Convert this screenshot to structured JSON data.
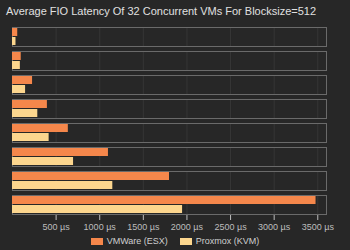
{
  "chart_data": {
    "type": "bar",
    "orientation": "horizontal",
    "title": "Average FIO Latency Of 32 Concurrent VMs For Blocksize=512",
    "categories": [
      null,
      null,
      null,
      null,
      null,
      null,
      null,
      null
    ],
    "series": [
      {
        "name": "VMWare (ESX)",
        "color": "#f5874b",
        "values": [
          60,
          100,
          230,
          400,
          640,
          1100,
          1800,
          3480
        ]
      },
      {
        "name": "Proxmox (KVM)",
        "color": "#fcd68e",
        "values": [
          40,
          90,
          150,
          290,
          420,
          700,
          1150,
          1950
        ]
      }
    ],
    "xlim": [
      0,
      3600
    ],
    "xticks": [
      {
        "value": 500,
        "label": "500 µs"
      },
      {
        "value": 1000,
        "label": "1000 µs"
      },
      {
        "value": 1500,
        "label": "1500 µs"
      },
      {
        "value": 2000,
        "label": "2000 µs"
      },
      {
        "value": 2500,
        "label": "2500 µs"
      },
      {
        "value": 3000,
        "label": "3000 µs"
      },
      {
        "value": 3500,
        "label": "3500 µs"
      }
    ],
    "grid": true,
    "legend": "bottom"
  }
}
